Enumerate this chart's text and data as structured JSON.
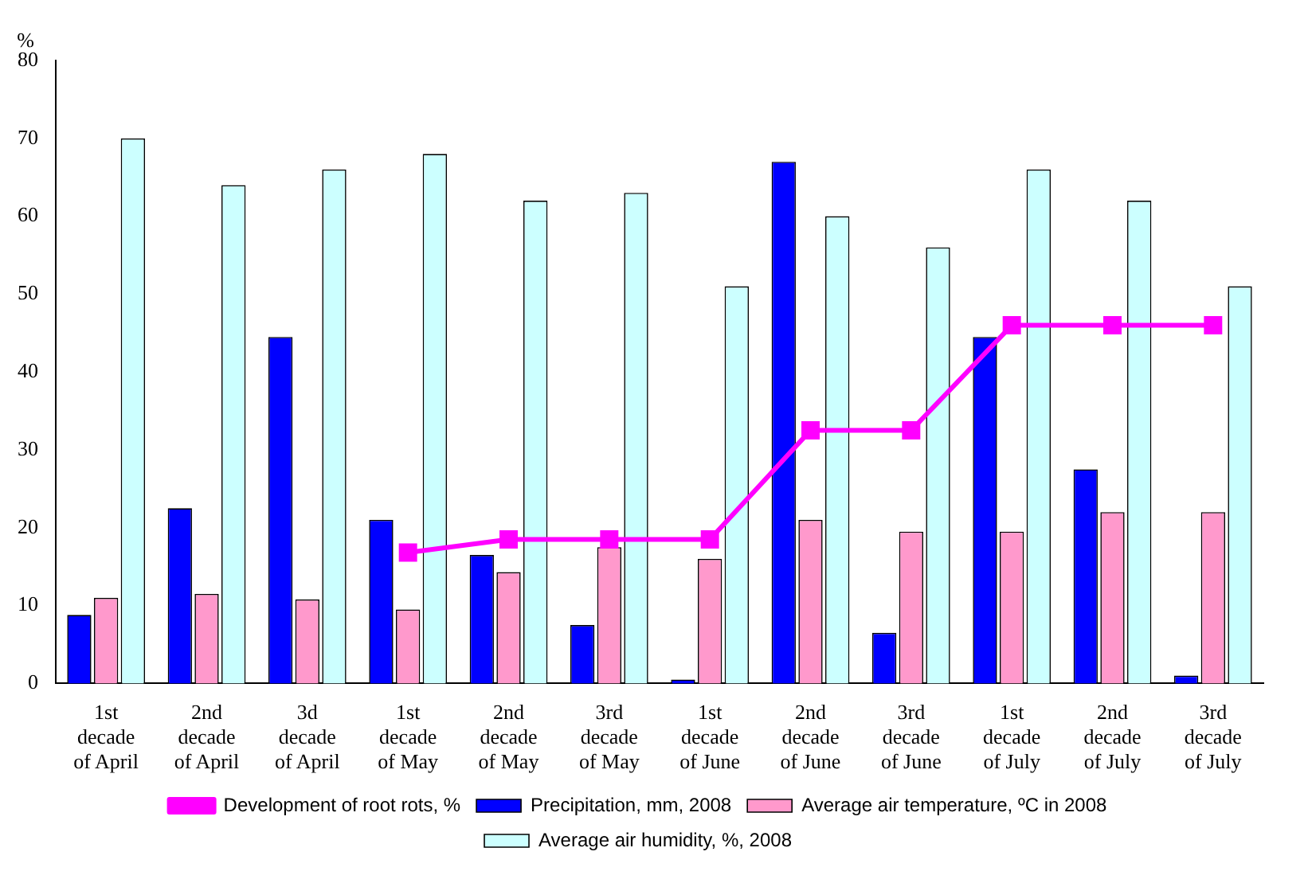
{
  "chart_data": {
    "type": "bar",
    "ylabel": "%",
    "categories": [
      "1st decade of April",
      "2nd decade of April",
      "3d decade of April",
      "1st decade of May",
      "2nd decade of May",
      "3rd decade of May",
      "1st decade of June",
      "2nd decade of June",
      "3rd decade of June",
      "1st decade of July",
      "2nd decade of July",
      "3rd decade of July"
    ],
    "series": [
      {
        "name": "Precipitation, mm, 2008",
        "color": "#0000ff",
        "values": [
          8.8,
          22.5,
          44.5,
          21,
          16.5,
          7.5,
          0.5,
          67,
          6.5,
          44.5,
          27.5,
          1
        ]
      },
      {
        "name": "Average air temperature, ºC in 2008",
        "color": "#ff99cc",
        "values": [
          11,
          11.5,
          10.8,
          9.5,
          14.3,
          17.5,
          16,
          21,
          19.5,
          19.5,
          22,
          22
        ]
      },
      {
        "name": "Average air humidity, %, 2008",
        "color": "#ccffff",
        "values": [
          70,
          64,
          66,
          68,
          62,
          63,
          51,
          60,
          56,
          66,
          62,
          51
        ]
      },
      {
        "name": "Development of root rots, %",
        "type": "line",
        "color": "#ff00ff",
        "marker": "square",
        "values": [
          null,
          null,
          null,
          16.8,
          18.5,
          18.5,
          18.5,
          32.5,
          32.5,
          46,
          46,
          46
        ]
      }
    ],
    "ylim": [
      0,
      80
    ],
    "yticks": [
      0,
      10,
      20,
      30,
      40,
      50,
      60,
      70,
      80
    ],
    "grid": false,
    "legend": "bottom"
  }
}
